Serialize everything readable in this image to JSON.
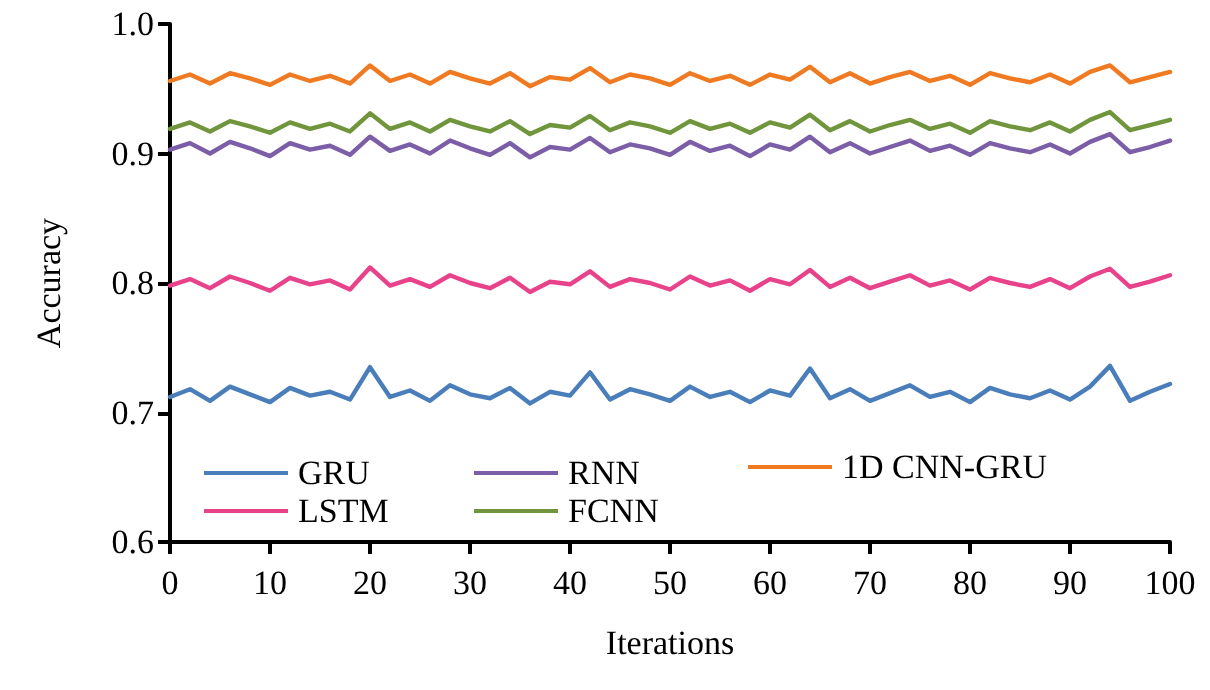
{
  "chart_data": {
    "type": "line",
    "xlabel": "Iterations",
    "ylabel": "Accuracy",
    "x": [
      0,
      2,
      4,
      6,
      8,
      10,
      12,
      14,
      16,
      18,
      20,
      22,
      24,
      26,
      28,
      30,
      32,
      34,
      36,
      38,
      40,
      42,
      44,
      46,
      48,
      50,
      52,
      54,
      56,
      58,
      60,
      62,
      64,
      66,
      68,
      70,
      72,
      74,
      76,
      78,
      80,
      82,
      84,
      86,
      88,
      90,
      92,
      94,
      96,
      98,
      100
    ],
    "series": [
      {
        "name": "GRU",
        "color": "#4a7ebb",
        "values": [
          0.712,
          0.718,
          0.709,
          0.72,
          0.714,
          0.708,
          0.719,
          0.713,
          0.716,
          0.71,
          0.735,
          0.712,
          0.717,
          0.709,
          0.721,
          0.714,
          0.711,
          0.719,
          0.707,
          0.716,
          0.713,
          0.731,
          0.71,
          0.718,
          0.714,
          0.709,
          0.72,
          0.712,
          0.716,
          0.708,
          0.717,
          0.713,
          0.734,
          0.711,
          0.718,
          0.709,
          0.715,
          0.721,
          0.712,
          0.716,
          0.708,
          0.719,
          0.714,
          0.711,
          0.717,
          0.71,
          0.72,
          0.736,
          0.709,
          0.716,
          0.722
        ]
      },
      {
        "name": "LSTM",
        "color": "#e8428a",
        "values": [
          0.798,
          0.803,
          0.796,
          0.805,
          0.8,
          0.794,
          0.804,
          0.799,
          0.802,
          0.795,
          0.812,
          0.798,
          0.803,
          0.797,
          0.806,
          0.8,
          0.796,
          0.804,
          0.793,
          0.801,
          0.799,
          0.809,
          0.797,
          0.803,
          0.8,
          0.795,
          0.805,
          0.798,
          0.802,
          0.794,
          0.803,
          0.799,
          0.81,
          0.797,
          0.804,
          0.796,
          0.801,
          0.806,
          0.798,
          0.802,
          0.795,
          0.804,
          0.8,
          0.797,
          0.803,
          0.796,
          0.805,
          0.811,
          0.797,
          0.801,
          0.806
        ]
      },
      {
        "name": "RNN",
        "color": "#7b5ea7",
        "values": [
          0.903,
          0.908,
          0.9,
          0.909,
          0.904,
          0.898,
          0.908,
          0.903,
          0.906,
          0.899,
          0.913,
          0.902,
          0.907,
          0.9,
          0.91,
          0.904,
          0.899,
          0.908,
          0.897,
          0.905,
          0.903,
          0.912,
          0.901,
          0.907,
          0.904,
          0.899,
          0.909,
          0.902,
          0.906,
          0.898,
          0.907,
          0.903,
          0.913,
          0.901,
          0.908,
          0.9,
          0.905,
          0.91,
          0.902,
          0.906,
          0.899,
          0.908,
          0.904,
          0.901,
          0.907,
          0.9,
          0.909,
          0.915,
          0.901,
          0.905,
          0.91
        ]
      },
      {
        "name": "FCNN",
        "color": "#70953c",
        "values": [
          0.919,
          0.924,
          0.917,
          0.925,
          0.921,
          0.916,
          0.924,
          0.919,
          0.923,
          0.917,
          0.931,
          0.919,
          0.924,
          0.917,
          0.926,
          0.921,
          0.917,
          0.925,
          0.915,
          0.922,
          0.92,
          0.929,
          0.918,
          0.924,
          0.921,
          0.916,
          0.925,
          0.919,
          0.923,
          0.916,
          0.924,
          0.92,
          0.93,
          0.918,
          0.925,
          0.917,
          0.922,
          0.926,
          0.919,
          0.923,
          0.916,
          0.925,
          0.921,
          0.918,
          0.924,
          0.917,
          0.926,
          0.932,
          0.918,
          0.922,
          0.926
        ]
      },
      {
        "name": "1D CNN-GRU",
        "color": "#f07a22",
        "values": [
          0.956,
          0.961,
          0.954,
          0.962,
          0.958,
          0.953,
          0.961,
          0.956,
          0.96,
          0.954,
          0.968,
          0.956,
          0.961,
          0.954,
          0.963,
          0.958,
          0.954,
          0.962,
          0.952,
          0.959,
          0.957,
          0.966,
          0.955,
          0.961,
          0.958,
          0.953,
          0.962,
          0.956,
          0.96,
          0.953,
          0.961,
          0.957,
          0.967,
          0.955,
          0.962,
          0.954,
          0.959,
          0.963,
          0.956,
          0.96,
          0.953,
          0.962,
          0.958,
          0.955,
          0.961,
          0.954,
          0.963,
          0.968,
          0.955,
          0.959,
          0.963
        ]
      }
    ],
    "xlim": [
      0,
      100
    ],
    "xticks": [
      0,
      10,
      20,
      30,
      40,
      50,
      60,
      70,
      80,
      90,
      100
    ],
    "ylim": [
      0.6,
      1.0
    ],
    "yticks": [
      0.6,
      0.7,
      0.8,
      0.9,
      {
        "value": 1,
        "label": "1.0"
      }
    ],
    "grid": false,
    "legend": "bottom left",
    "marker": "none",
    "line_style": "solid"
  }
}
